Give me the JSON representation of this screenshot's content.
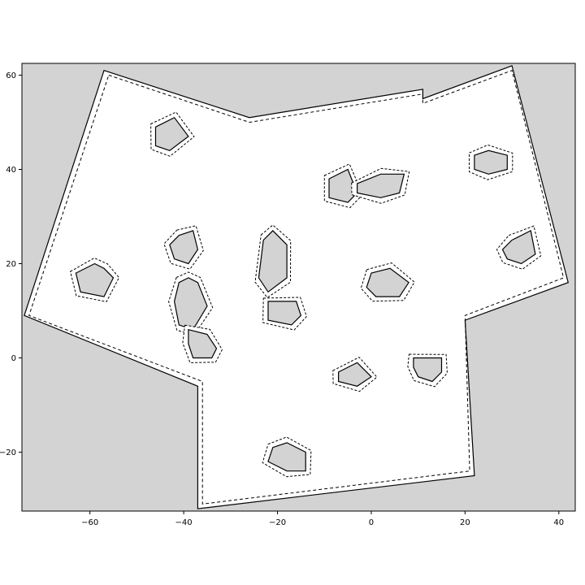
{
  "chart_data": {
    "type": "scatter",
    "title": "",
    "xlabel": "",
    "ylabel": "",
    "xlim": [
      -74.5,
      43.5
    ],
    "ylim": [
      -32.5,
      62.5
    ],
    "x_ticks": [
      -60,
      -40,
      -20,
      0,
      20,
      40
    ],
    "y_ticks": [
      -20,
      0,
      20,
      40,
      60
    ],
    "grid": false,
    "colors": {
      "background": "#d3d3d3",
      "free_space": "#ffffff",
      "obstacle_fill": "#d3d3d3",
      "outline": "#000000"
    },
    "boundary": [
      [
        -57,
        61
      ],
      [
        -26,
        51
      ],
      [
        11,
        57
      ],
      [
        11,
        55
      ],
      [
        30,
        62
      ],
      [
        42,
        16
      ],
      [
        20,
        8
      ],
      [
        22,
        -25
      ],
      [
        -37,
        -32
      ],
      [
        -37,
        -6
      ],
      [
        -74,
        9
      ]
    ],
    "boundary_inset": [
      [
        -56,
        60
      ],
      [
        -26,
        50
      ],
      [
        11,
        56
      ],
      [
        11,
        54
      ],
      [
        30,
        61
      ],
      [
        41,
        17
      ],
      [
        20,
        9
      ],
      [
        21,
        -24
      ],
      [
        -36,
        -31
      ],
      [
        -36,
        -5
      ],
      [
        -73,
        9
      ]
    ],
    "obstacles": [
      [
        [
          -46,
          49
        ],
        [
          -42,
          51
        ],
        [
          -39,
          47
        ],
        [
          -43,
          44
        ],
        [
          -46,
          45
        ]
      ],
      [
        [
          -9,
          38
        ],
        [
          -5,
          40
        ],
        [
          -3,
          35
        ],
        [
          -5,
          33
        ],
        [
          -9,
          34
        ]
      ],
      [
        [
          -3,
          37
        ],
        [
          2,
          39
        ],
        [
          7,
          39
        ],
        [
          6,
          35
        ],
        [
          2,
          34
        ],
        [
          -3,
          35
        ]
      ],
      [
        [
          22,
          43
        ],
        [
          25,
          44
        ],
        [
          29,
          43
        ],
        [
          29,
          40
        ],
        [
          25,
          39
        ],
        [
          22,
          40
        ]
      ],
      [
        [
          -63,
          18
        ],
        [
          -59,
          20
        ],
        [
          -57,
          19
        ],
        [
          -55,
          17
        ],
        [
          -57,
          13
        ],
        [
          -62,
          14
        ]
      ],
      [
        [
          -41,
          26
        ],
        [
          -38,
          27
        ],
        [
          -37,
          23
        ],
        [
          -39,
          20
        ],
        [
          -42,
          21
        ],
        [
          -43,
          24
        ]
      ],
      [
        [
          -23,
          25
        ],
        [
          -21,
          27
        ],
        [
          -18,
          24
        ],
        [
          -18,
          17
        ],
        [
          -22,
          14
        ],
        [
          -24,
          17
        ]
      ],
      [
        [
          -41,
          16
        ],
        [
          -39,
          17
        ],
        [
          -37,
          16
        ],
        [
          -35,
          11
        ],
        [
          -38,
          6
        ],
        [
          -41,
          7
        ],
        [
          -42,
          12
        ]
      ],
      [
        [
          -22,
          12
        ],
        [
          -16,
          12
        ],
        [
          -15,
          9
        ],
        [
          -17,
          7
        ],
        [
          -22,
          8
        ]
      ],
      [
        [
          -39,
          6
        ],
        [
          -35,
          5
        ],
        [
          -33,
          2
        ],
        [
          -34,
          0
        ],
        [
          -38,
          0
        ],
        [
          -39,
          3
        ]
      ],
      [
        [
          0,
          18
        ],
        [
          4,
          19
        ],
        [
          8,
          16
        ],
        [
          6,
          13
        ],
        [
          1,
          13
        ],
        [
          -1,
          15
        ]
      ],
      [
        [
          30,
          25
        ],
        [
          34,
          27
        ],
        [
          35,
          22
        ],
        [
          32,
          20
        ],
        [
          29,
          21
        ],
        [
          28,
          23
        ]
      ],
      [
        [
          -7,
          -3
        ],
        [
          -3,
          -1
        ],
        [
          0,
          -4
        ],
        [
          -3,
          -6
        ],
        [
          -7,
          -5
        ]
      ],
      [
        [
          9,
          0
        ],
        [
          15,
          0
        ],
        [
          15,
          -3
        ],
        [
          13,
          -5
        ],
        [
          10,
          -4
        ],
        [
          9,
          -2
        ]
      ],
      [
        [
          -21,
          -19
        ],
        [
          -18,
          -18
        ],
        [
          -14,
          -20
        ],
        [
          -14,
          -24
        ],
        [
          -18,
          -24
        ],
        [
          -22,
          -22
        ]
      ]
    ]
  }
}
